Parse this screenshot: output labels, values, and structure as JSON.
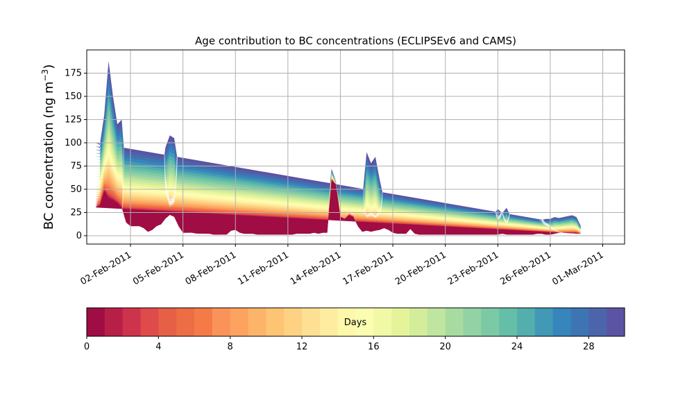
{
  "chart_data": {
    "type": "area",
    "title": "Age contribution to BC concentrations (ECLIPSEv6 and CAMS)",
    "ylabel": "BC concentration (ng m",
    "ylabel_sup": "−3",
    "ylabel_close": ")",
    "xlabel": "",
    "x_axis": {
      "type": "date",
      "xlim": [
        "2011-01-30T12:00",
        "2011-03-02T06:00"
      ],
      "tick_labels": [
        "02-Feb-2011",
        "05-Feb-2011",
        "08-Feb-2011",
        "11-Feb-2011",
        "14-Feb-2011",
        "17-Feb-2011",
        "20-Feb-2011",
        "23-Feb-2011",
        "26-Feb-2011",
        "01-Mar-2011"
      ],
      "tick_dates": [
        "2011-02-02",
        "2011-02-05",
        "2011-02-08",
        "2011-02-11",
        "2011-02-14",
        "2011-02-17",
        "2011-02-20",
        "2011-02-23",
        "2011-02-26",
        "2011-03-01"
      ]
    },
    "y_axis": {
      "ylim": [
        -9,
        200
      ],
      "ticks": [
        0,
        25,
        50,
        75,
        100,
        125,
        150,
        175
      ],
      "tick_labels": [
        "0",
        "25",
        "50",
        "75",
        "100",
        "125",
        "150",
        "175"
      ]
    },
    "grid": true,
    "series": {
      "x": [
        "2011-01-31T00:00",
        "2011-01-31T06:00",
        "2011-01-31T12:00",
        "2011-01-31T18:00",
        "2011-02-01T00:00",
        "2011-02-01T06:00",
        "2011-02-01T12:00",
        "2011-02-01T18:00",
        "2011-02-02T00:00",
        "2011-02-02T06:00",
        "2011-02-02T12:00",
        "2011-02-02T18:00",
        "2011-02-03T00:00",
        "2011-02-03T06:00",
        "2011-02-03T12:00",
        "2011-02-03T18:00",
        "2011-02-04T00:00",
        "2011-02-04T06:00",
        "2011-02-04T12:00",
        "2011-02-04T18:00",
        "2011-02-05T00:00",
        "2011-02-05T06:00",
        "2011-02-05T12:00",
        "2011-02-05T18:00",
        "2011-02-06T00:00",
        "2011-02-06T06:00",
        "2011-02-06T12:00",
        "2011-02-06T18:00",
        "2011-02-07T00:00",
        "2011-02-07T06:00",
        "2011-02-07T12:00",
        "2011-02-07T18:00",
        "2011-02-08T00:00",
        "2011-02-08T06:00",
        "2011-02-08T12:00",
        "2011-02-08T18:00",
        "2011-02-09T00:00",
        "2011-02-09T06:00",
        "2011-02-09T12:00",
        "2011-02-09T18:00",
        "2011-02-10T00:00",
        "2011-02-10T06:00",
        "2011-02-10T12:00",
        "2011-02-10T18:00",
        "2011-02-11T00:00",
        "2011-02-11T06:00",
        "2011-02-11T12:00",
        "2011-02-11T18:00",
        "2011-02-12T00:00",
        "2011-02-12T06:00",
        "2011-02-12T12:00",
        "2011-02-12T18:00",
        "2011-02-13T00:00",
        "2011-02-13T06:00",
        "2011-02-13T12:00",
        "2011-02-13T18:00",
        "2011-02-14T00:00",
        "2011-02-14T06:00",
        "2011-02-14T12:00",
        "2011-02-14T18:00",
        "2011-02-15T00:00",
        "2011-02-15T06:00",
        "2011-02-15T12:00",
        "2011-02-15T18:00",
        "2011-02-16T00:00",
        "2011-02-16T06:00",
        "2011-02-16T12:00",
        "2011-02-16T18:00",
        "2011-02-17T00:00",
        "2011-02-17T06:00",
        "2011-02-17T12:00",
        "2011-02-17T18:00",
        "2011-02-18T00:00",
        "2011-02-18T06:00",
        "2011-02-18T12:00",
        "2011-02-18T18:00",
        "2011-02-19T00:00",
        "2011-02-19T06:00",
        "2011-02-19T12:00",
        "2011-02-19T18:00",
        "2011-02-20T00:00",
        "2011-02-20T06:00",
        "2011-02-20T12:00",
        "2011-02-20T18:00",
        "2011-02-21T00:00",
        "2011-02-21T06:00",
        "2011-02-21T12:00",
        "2011-02-21T18:00",
        "2011-02-22T00:00",
        "2011-02-22T06:00",
        "2011-02-22T12:00",
        "2011-02-22T18:00",
        "2011-02-23T00:00",
        "2011-02-23T06:00",
        "2011-02-23T12:00",
        "2011-02-23T18:00",
        "2011-02-24T00:00",
        "2011-02-24T06:00",
        "2011-02-24T12:00",
        "2011-02-24T18:00",
        "2011-02-25T00:00",
        "2011-02-25T06:00",
        "2011-02-25T12:00",
        "2011-02-25T18:00",
        "2011-02-26T00:00",
        "2011-02-26T06:00",
        "2011-02-26T12:00",
        "2011-02-26T18:00",
        "2011-02-27T00:00",
        "2011-02-27T06:00",
        "2011-02-27T12:00",
        "2011-02-27T18:00",
        "2011-02-28T00:00",
        "2011-02-28T06:00",
        "2011-02-28T12:00",
        "2011-02-28T18:00",
        "2011-03-01T00:00"
      ],
      "total": [
        100,
        98,
        130,
        188,
        150,
        120,
        125,
        60,
        45,
        48,
        50,
        40,
        28,
        50,
        80,
        60,
        95,
        108,
        105,
        75,
        45,
        48,
        55,
        58,
        45,
        38,
        28,
        15,
        22,
        28,
        32,
        62,
        55,
        25,
        20,
        15,
        18,
        16,
        15,
        14,
        14,
        13,
        15,
        14,
        16,
        18,
        27,
        28,
        32,
        30,
        28,
        26,
        28,
        27,
        72,
        58,
        30,
        28,
        35,
        33,
        30,
        40,
        90,
        78,
        85,
        60,
        38,
        40,
        32,
        28,
        26,
        20,
        27,
        24,
        22,
        24,
        27,
        20,
        18,
        17,
        15,
        14,
        14,
        14,
        17,
        18,
        20,
        20,
        22,
        20,
        22,
        22,
        29,
        24,
        30,
        20,
        16,
        15,
        16,
        15,
        16,
        17,
        17,
        18,
        18,
        20,
        19,
        20,
        21,
        22,
        20,
        10
      ],
      "fresh": [
        30,
        32,
        48,
        40,
        38,
        35,
        30,
        14,
        10,
        10,
        10,
        8,
        4,
        6,
        10,
        12,
        18,
        22,
        20,
        10,
        3,
        3,
        3,
        2,
        2,
        2,
        2,
        1,
        1,
        1,
        1,
        5,
        6,
        3,
        2,
        2,
        2,
        1,
        1,
        1,
        1,
        1,
        1,
        1,
        1,
        1,
        2,
        2,
        2,
        2,
        3,
        2,
        3,
        3,
        60,
        55,
        20,
        18,
        22,
        20,
        10,
        4,
        5,
        4,
        5,
        6,
        8,
        6,
        3,
        2,
        2,
        2,
        7,
        2,
        1,
        1,
        1,
        1,
        1,
        1,
        1,
        1,
        1,
        1,
        1,
        1,
        1,
        1,
        1,
        1,
        1,
        1,
        1,
        2,
        1,
        1,
        1,
        1,
        1,
        1,
        1,
        2,
        2,
        1,
        1,
        2,
        3,
        3,
        3,
        3,
        3,
        2
      ]
    },
    "colorbar": {
      "label": "Days",
      "range": [
        0,
        30
      ],
      "ticks": [
        0,
        4,
        8,
        12,
        16,
        20,
        24,
        28
      ],
      "tick_labels": [
        "0",
        "4",
        "8",
        "12",
        "16",
        "20",
        "24",
        "28"
      ],
      "colors": [
        "#a00c44",
        "#b81f47",
        "#cd334c",
        "#df4a4b",
        "#e65f47",
        "#ed6d45",
        "#f47b47",
        "#f9935a",
        "#fca35f",
        "#fcb46a",
        "#fdc474",
        "#fed282",
        "#fde093",
        "#feeda1",
        "#fff8ab",
        "#fbfeb1",
        "#f2f9a6",
        "#e5f49a",
        "#d4ed9b",
        "#bfe5a0",
        "#a8db9f",
        "#92d2a4",
        "#7cc9a5",
        "#65bea7",
        "#54aead",
        "#4199b5",
        "#3685bc",
        "#3e74b2",
        "#4c64ac",
        "#5b53a3"
      ]
    }
  }
}
